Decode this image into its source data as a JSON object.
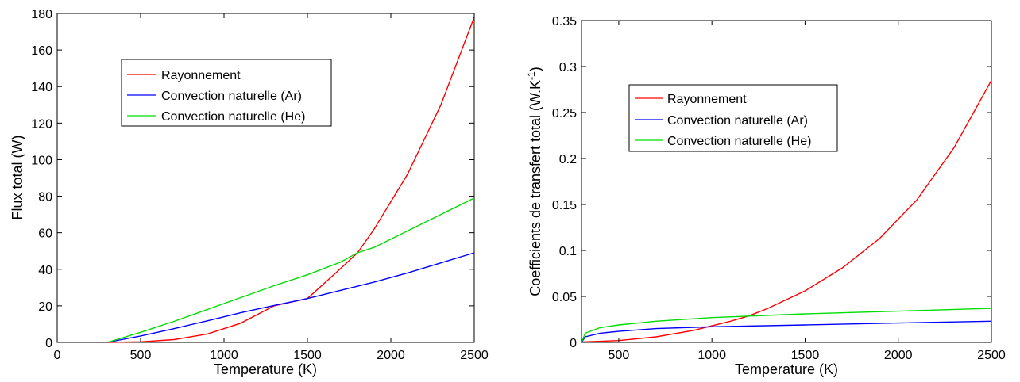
{
  "chart_data": [
    {
      "type": "line",
      "title": "",
      "xlabel": "Temperature (K)",
      "ylabel": "Flux total (W)",
      "xlim": [
        0,
        2500
      ],
      "ylim": [
        0,
        180
      ],
      "xticks": [
        0,
        500,
        1000,
        1500,
        2000,
        2500
      ],
      "yticks": [
        0,
        20,
        40,
        60,
        80,
        100,
        120,
        140,
        160,
        180
      ],
      "xtick_labels": [
        "0",
        "500",
        "1000",
        "1500",
        "2000",
        "2500"
      ],
      "ytick_labels": [
        "0",
        "20",
        "40",
        "60",
        "80",
        "100",
        "120",
        "140",
        "160",
        "180"
      ],
      "grid": false,
      "legend_position": "top-left",
      "series": [
        {
          "name": "Rayonnement",
          "color": "#ff0000",
          "x": [
            300,
            500,
            700,
            900,
            1100,
            1300,
            1500,
            1700,
            1800,
            1900,
            2100,
            2300,
            2500
          ],
          "y": [
            0,
            0.3,
            1.5,
            4.6,
            10.5,
            20,
            24,
            40.5,
            49,
            62,
            92,
            130,
            178
          ]
        },
        {
          "name": "Convection naturelle (Ar)",
          "color": "#0000ff",
          "x": [
            300,
            500,
            700,
            900,
            1100,
            1300,
            1500,
            1700,
            1900,
            2100,
            2300,
            2500
          ],
          "y": [
            0,
            3.5,
            7.5,
            11.8,
            16.2,
            20.2,
            24,
            28.5,
            33,
            38,
            43.5,
            49
          ]
        },
        {
          "name": "Convection naturelle (He)",
          "color": "#00dd00",
          "x": [
            300,
            500,
            700,
            900,
            1100,
            1300,
            1500,
            1700,
            1800,
            1900,
            2100,
            2300,
            2500
          ],
          "y": [
            0,
            5.5,
            11.5,
            18,
            24.5,
            31,
            37,
            44,
            49,
            52,
            61,
            70,
            79
          ]
        }
      ]
    },
    {
      "type": "line",
      "title": "",
      "xlabel": "Temperature (K)",
      "ylabel": "Coefficients de transfert total (W.K",
      "ylabel_sup": "-1",
      "ylabel_end": ")",
      "xlim": [
        300,
        2500
      ],
      "ylim": [
        0,
        0.35
      ],
      "xticks": [
        500,
        1000,
        1500,
        2000,
        2500
      ],
      "yticks": [
        0,
        0.05,
        0.1,
        0.15,
        0.2,
        0.25,
        0.3,
        0.35
      ],
      "xtick_labels": [
        "500",
        "1000",
        "1500",
        "2000",
        "2500"
      ],
      "ytick_labels": [
        "0",
        "0.05",
        "0.1",
        "0.15",
        "0.2",
        "0.25",
        "0.3",
        "0.35"
      ],
      "grid": false,
      "legend_position": "upper-left",
      "series": [
        {
          "name": "Rayonnement",
          "color": "#ff0000",
          "x": [
            300,
            500,
            700,
            900,
            1100,
            1200,
            1300,
            1500,
            1700,
            1900,
            2100,
            2300,
            2500
          ],
          "y": [
            0.0005,
            0.002,
            0.006,
            0.013,
            0.023,
            0.029,
            0.037,
            0.056,
            0.081,
            0.113,
            0.155,
            0.212,
            0.285
          ]
        },
        {
          "name": "Convection naturelle (Ar)",
          "color": "#0000ff",
          "x": [
            300,
            320,
            400,
            500,
            700,
            1000,
            1500,
            2000,
            2500
          ],
          "y": [
            0,
            0.006,
            0.01,
            0.012,
            0.015,
            0.017,
            0.019,
            0.021,
            0.023
          ]
        },
        {
          "name": "Convection naturelle (He)",
          "color": "#00dd00",
          "x": [
            300,
            320,
            400,
            500,
            700,
            1000,
            1500,
            2000,
            2500
          ],
          "y": [
            0,
            0.01,
            0.016,
            0.019,
            0.023,
            0.027,
            0.031,
            0.034,
            0.037
          ]
        }
      ]
    }
  ]
}
